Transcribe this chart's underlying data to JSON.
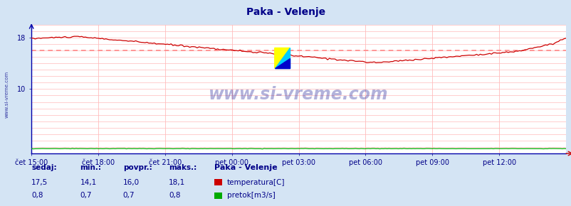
{
  "title": "Paka - Velenje",
  "background_color": "#d4e4f4",
  "plot_bg_color": "#ffffff",
  "grid_color": "#ffbbbb",
  "x_labels": [
    "čet 15:00",
    "čet 18:00",
    "čet 21:00",
    "pet 00:00",
    "pet 03:00",
    "pet 06:00",
    "pet 09:00",
    "pet 12:00"
  ],
  "y_ticks": [
    10,
    18
  ],
  "ylim": [
    0,
    20
  ],
  "temp_min": 14.1,
  "temp_max": 18.1,
  "temp_avg": 16.0,
  "temp_current": 17.5,
  "flow_min": 0.7,
  "flow_max": 0.8,
  "flow_avg": 0.7,
  "flow_current": 0.8,
  "temp_color": "#cc0000",
  "flow_color": "#00aa00",
  "avg_line_color": "#ff8888",
  "watermark": "www.si-vreme.com",
  "left_label": "www.si-vreme.com",
  "legend_title": "Paka - Velenje",
  "stat_labels": [
    "sedaj:",
    "min.:",
    "povpr.:",
    "maks.:"
  ],
  "stat_temp": [
    "17,5",
    "14,1",
    "16,0",
    "18,1"
  ],
  "stat_flow": [
    "0,8",
    "0,7",
    "0,7",
    "0,8"
  ],
  "logo_colors": [
    "#ffff00",
    "#00ccff",
    "#0000cc"
  ]
}
